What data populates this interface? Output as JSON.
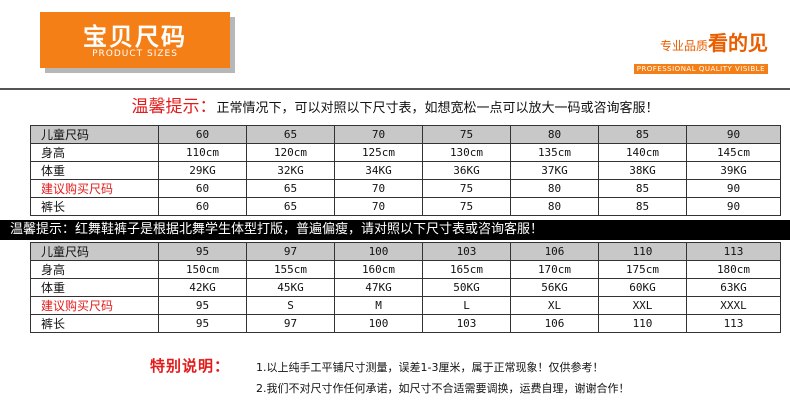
{
  "header": {
    "title_cn": "宝贝尺码",
    "title_en": "PRODUCT SIZES",
    "slogan_small": "专业品质",
    "slogan_big": "看的见",
    "slogan_en": "PROFESSIONAL QUALITY VISIBLE"
  },
  "tip1": {
    "lead": "温馨提示：",
    "text": "正常情况下，可以对照以下尺寸表，如想宽松一点可以放大一码或咨询客服！"
  },
  "table1": {
    "rows": [
      {
        "label": "儿童尺码",
        "cells": [
          "60",
          "65",
          "70",
          "75",
          "80",
          "85",
          "90"
        ]
      },
      {
        "label": "身高",
        "cells": [
          "110cm",
          "120cm",
          "125cm",
          "130cm",
          "135cm",
          "140cm",
          "145cm"
        ]
      },
      {
        "label": "体重",
        "cells": [
          "29KG",
          "32KG",
          "34KG",
          "36KG",
          "37KG",
          "38KG",
          "39KG"
        ]
      },
      {
        "label": "建议购买尺码",
        "cells": [
          "60",
          "65",
          "70",
          "75",
          "80",
          "85",
          "90"
        ]
      },
      {
        "label": "裤长",
        "cells": [
          "60",
          "65",
          "70",
          "75",
          "80",
          "85",
          "90"
        ]
      }
    ]
  },
  "tip2": {
    "text": "温馨提示：红舞鞋裤子是根据北舞学生体型打版，普遍偏瘦，请对照以下尺寸表或咨询客服！"
  },
  "table2": {
    "rows": [
      {
        "label": "儿童尺码",
        "cells": [
          "95",
          "97",
          "100",
          "103",
          "106",
          "110",
          "113"
        ]
      },
      {
        "label": "身高",
        "cells": [
          "150cm",
          "155cm",
          "160cm",
          "165cm",
          "170cm",
          "175cm",
          "180cm"
        ]
      },
      {
        "label": "体重",
        "cells": [
          "42KG",
          "45KG",
          "47KG",
          "50KG",
          "56KG",
          "60KG",
          "63KG"
        ]
      },
      {
        "label": "建议购买尺码",
        "cells": [
          "95",
          "S",
          "M",
          "L",
          "XL",
          "XXL",
          "XXXL"
        ]
      },
      {
        "label": "裤长",
        "cells": [
          "95",
          "97",
          "100",
          "103",
          "106",
          "110",
          "113"
        ]
      }
    ]
  },
  "notes": {
    "title": "特别说明：",
    "items": [
      "1.以上纯手工平铺尺寸测量，误差1-3厘米，属于正常现象！仅供参考！",
      "2.我们不对尺寸作任何承诺，如尺寸不合适需要调换，运费自理，谢谢合作！"
    ]
  },
  "colors": {
    "accent": "#f57f17",
    "red": "#e31b1b",
    "header_row": "#c8c8c8"
  }
}
